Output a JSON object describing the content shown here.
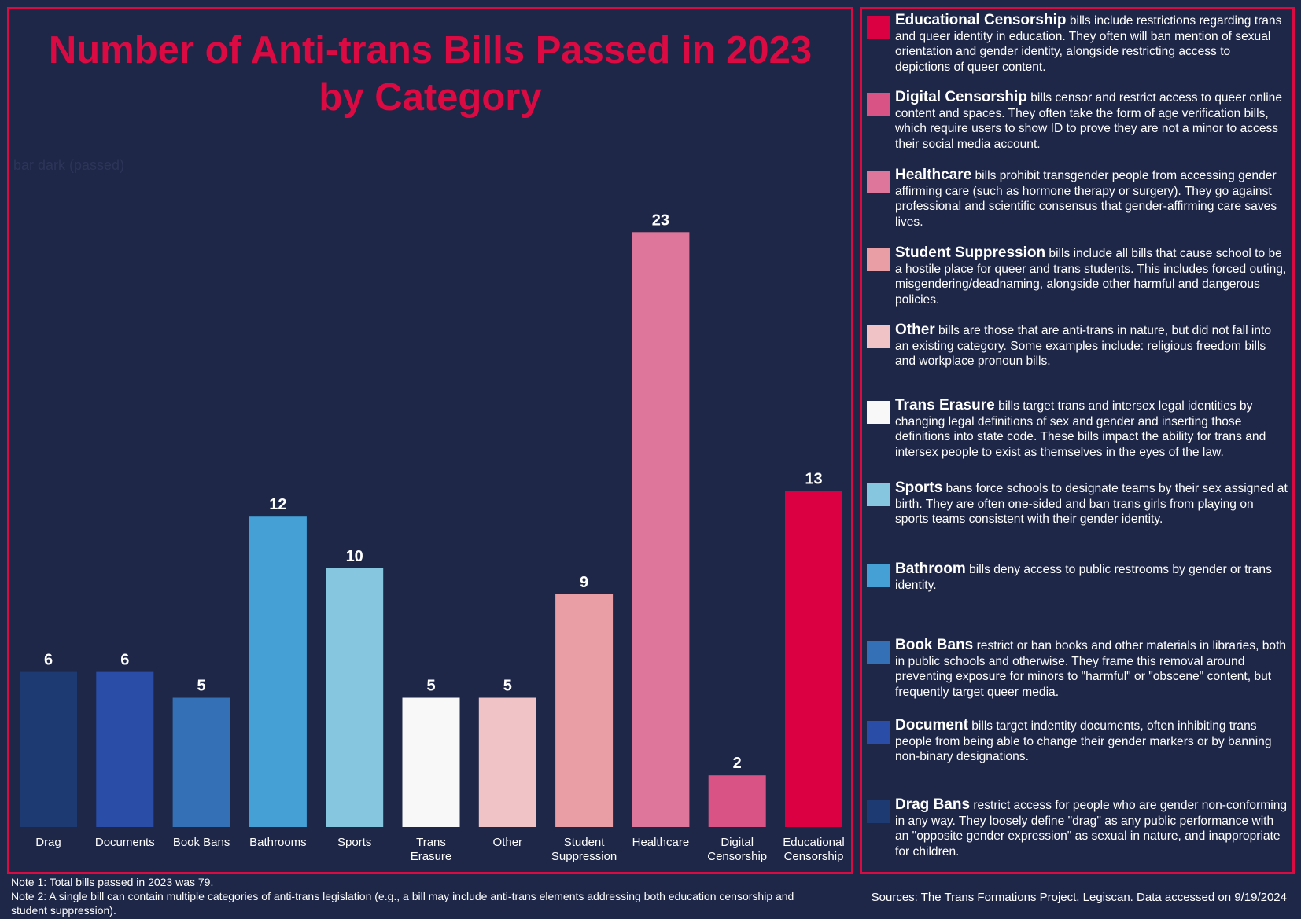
{
  "chart_data": {
    "type": "bar",
    "title": "Number of Anti-trans Bills Passed in 2023 by Category",
    "title_lines": [
      "Number of Anti-trans Bills Passed in 2023",
      "by Category"
    ],
    "series_label": "bar dark (passed)",
    "categories": [
      "Drag",
      "Documents",
      "Book Bans",
      "Bathrooms",
      "Sports",
      "Trans Erasure",
      "Other",
      "Student Suppression",
      "Healthcare",
      "Digital Censorship",
      "Educational Censorship"
    ],
    "category_lines": [
      [
        "Drag"
      ],
      [
        "Documents"
      ],
      [
        "Book Bans"
      ],
      [
        "Bathrooms"
      ],
      [
        "Sports"
      ],
      [
        "Trans",
        "Erasure"
      ],
      [
        "Other"
      ],
      [
        "Student",
        "Suppression"
      ],
      [
        "Healthcare"
      ],
      [
        "Digital",
        "Censorship"
      ],
      [
        "Educational",
        "Censorship"
      ]
    ],
    "values": [
      6,
      6,
      5,
      12,
      10,
      5,
      5,
      9,
      23,
      2,
      13
    ],
    "colors": [
      "#1d3a72",
      "#2a4ea8",
      "#3470b5",
      "#45a0d6",
      "#86c6de",
      "#f8f8f8",
      "#f0c4c6",
      "#e99ea6",
      "#de759a",
      "#d95384",
      "#db0042"
    ],
    "ylim": [
      0,
      25
    ],
    "grid": false,
    "xlabel": "",
    "ylabel": ""
  },
  "legend": [
    {
      "label": "Educational Censorship",
      "description": " bills include restrictions regarding trans and queer identity in education.  They often will ban mention of sexual orientation and gender identity, alongside restricting access to depictions of queer content.",
      "color": "#db0042"
    },
    {
      "label": "Digital Censorship",
      "description": " bills censor and restrict access to queer online content and spaces.  They often take the form of age verification bills, which require users to show ID to prove they are not a minor to access their social media account.",
      "color": "#d95384"
    },
    {
      "label": "Healthcare",
      "description": " bills prohibit transgender people from accessing gender affirming care (such as hormone therapy or surgery).  They go against professional and scientific consensus that gender-affirming care saves lives.",
      "color": "#de759a"
    },
    {
      "label": "Student Suppression",
      "description": " bills include all bills that cause school to be a hostile place for queer and trans students.  This includes forced outing, misgendering/deadnaming, alongside other harmful and dangerous policies.",
      "color": "#e99ea6"
    },
    {
      "label": "Other",
      "description": " bills are those that are anti-trans in nature, but did not fall into an existing category.  Some examples include: religious freedom bills and workplace pronoun bills.",
      "color": "#f0c4c6"
    },
    {
      "label": "Trans Erasure",
      "description": " bills target trans and intersex legal identities by changing legal definitions of sex and gender and inserting those definitions into state code.  These bills impact the ability for trans and intersex people to exist as themselves in the eyes of the law.",
      "color": "#f8f8f8"
    },
    {
      "label": "Sports",
      "description": " bans force schools to designate teams by their sex assigned at birth.  They are often one-sided and ban trans girls from playing on sports teams consistent with their gender identity.",
      "color": "#86c6de"
    },
    {
      "label": "Bathroom",
      "description": " bills deny access to public restrooms by gender or trans identity.",
      "color": "#45a0d6"
    },
    {
      "label": "Book Bans",
      "description": " restrict or ban books and other materials in libraries, both in public schools and otherwise.  They frame this removal around preventing exposure for minors to \"harmful\" or \"obscene\" content, but frequently target queer media.",
      "color": "#3470b5"
    },
    {
      "label": "Document",
      "description": " bills target indentity documents, often inhibiting trans people from being able to change their gender markers or by banning non-binary designations.",
      "color": "#2a4ea8"
    },
    {
      "label": "Drag Bans",
      "description": " restrict access for people who are gender non-conforming in any way.  They loosely define \"drag\" as any public performance with an \"opposite gender expression\" as sexual in nature, and inappropriate for children.",
      "color": "#1d3a72"
    }
  ],
  "notes": {
    "note1": "Note 1: Total bills passed in 2023 was 79.",
    "note2": "Note 2: A single bill can contain multiple categories of anti-trans legislation (e.g., a bill may include anti-trans elements addressing both education censorship and student suppression)."
  },
  "sources": "Sources: The Trans Formations Project, Legiscan.  Data accessed on 9/19/2024",
  "colors": {
    "background": "#1e2747",
    "accent": "#db0a42"
  }
}
